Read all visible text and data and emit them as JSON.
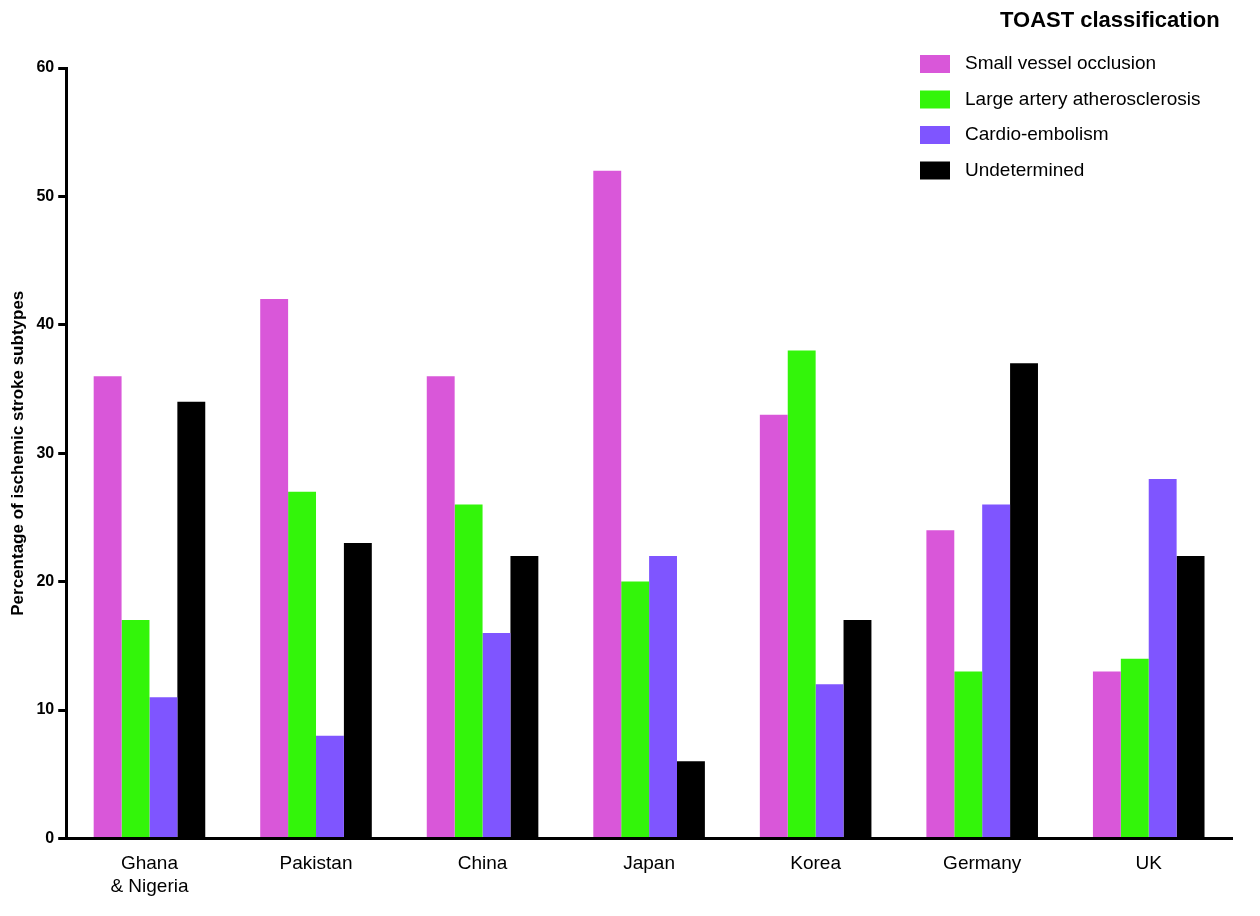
{
  "chart_data": {
    "type": "bar",
    "ylabel": "Percentage of ischemic stroke subtypes",
    "legend_title": "TOAST classification",
    "categories": [
      "Ghana\n& Nigeria",
      "Pakistan",
      "China",
      "Japan",
      "Korea",
      "Germany",
      "UK"
    ],
    "series": [
      {
        "name": "Small vessel occlusion",
        "color": "#d957d9",
        "values": [
          36,
          42,
          36,
          52,
          33,
          24,
          13
        ]
      },
      {
        "name": "Large artery atherosclerosis",
        "color": "#33f50a",
        "values": [
          17,
          27,
          26,
          20,
          38,
          13,
          14
        ]
      },
      {
        "name": "Cardio-embolism",
        "color": "#7f55ff",
        "values": [
          11,
          8,
          16,
          22,
          12,
          26,
          28
        ]
      },
      {
        "name": "Undetermined",
        "color": "#000000",
        "values": [
          34,
          23,
          22,
          6,
          17,
          37,
          22
        ]
      }
    ],
    "ylim": [
      0,
      60
    ],
    "yticks": [
      0,
      10,
      20,
      30,
      40,
      50,
      60
    ],
    "grid": false,
    "legend": "top right"
  }
}
